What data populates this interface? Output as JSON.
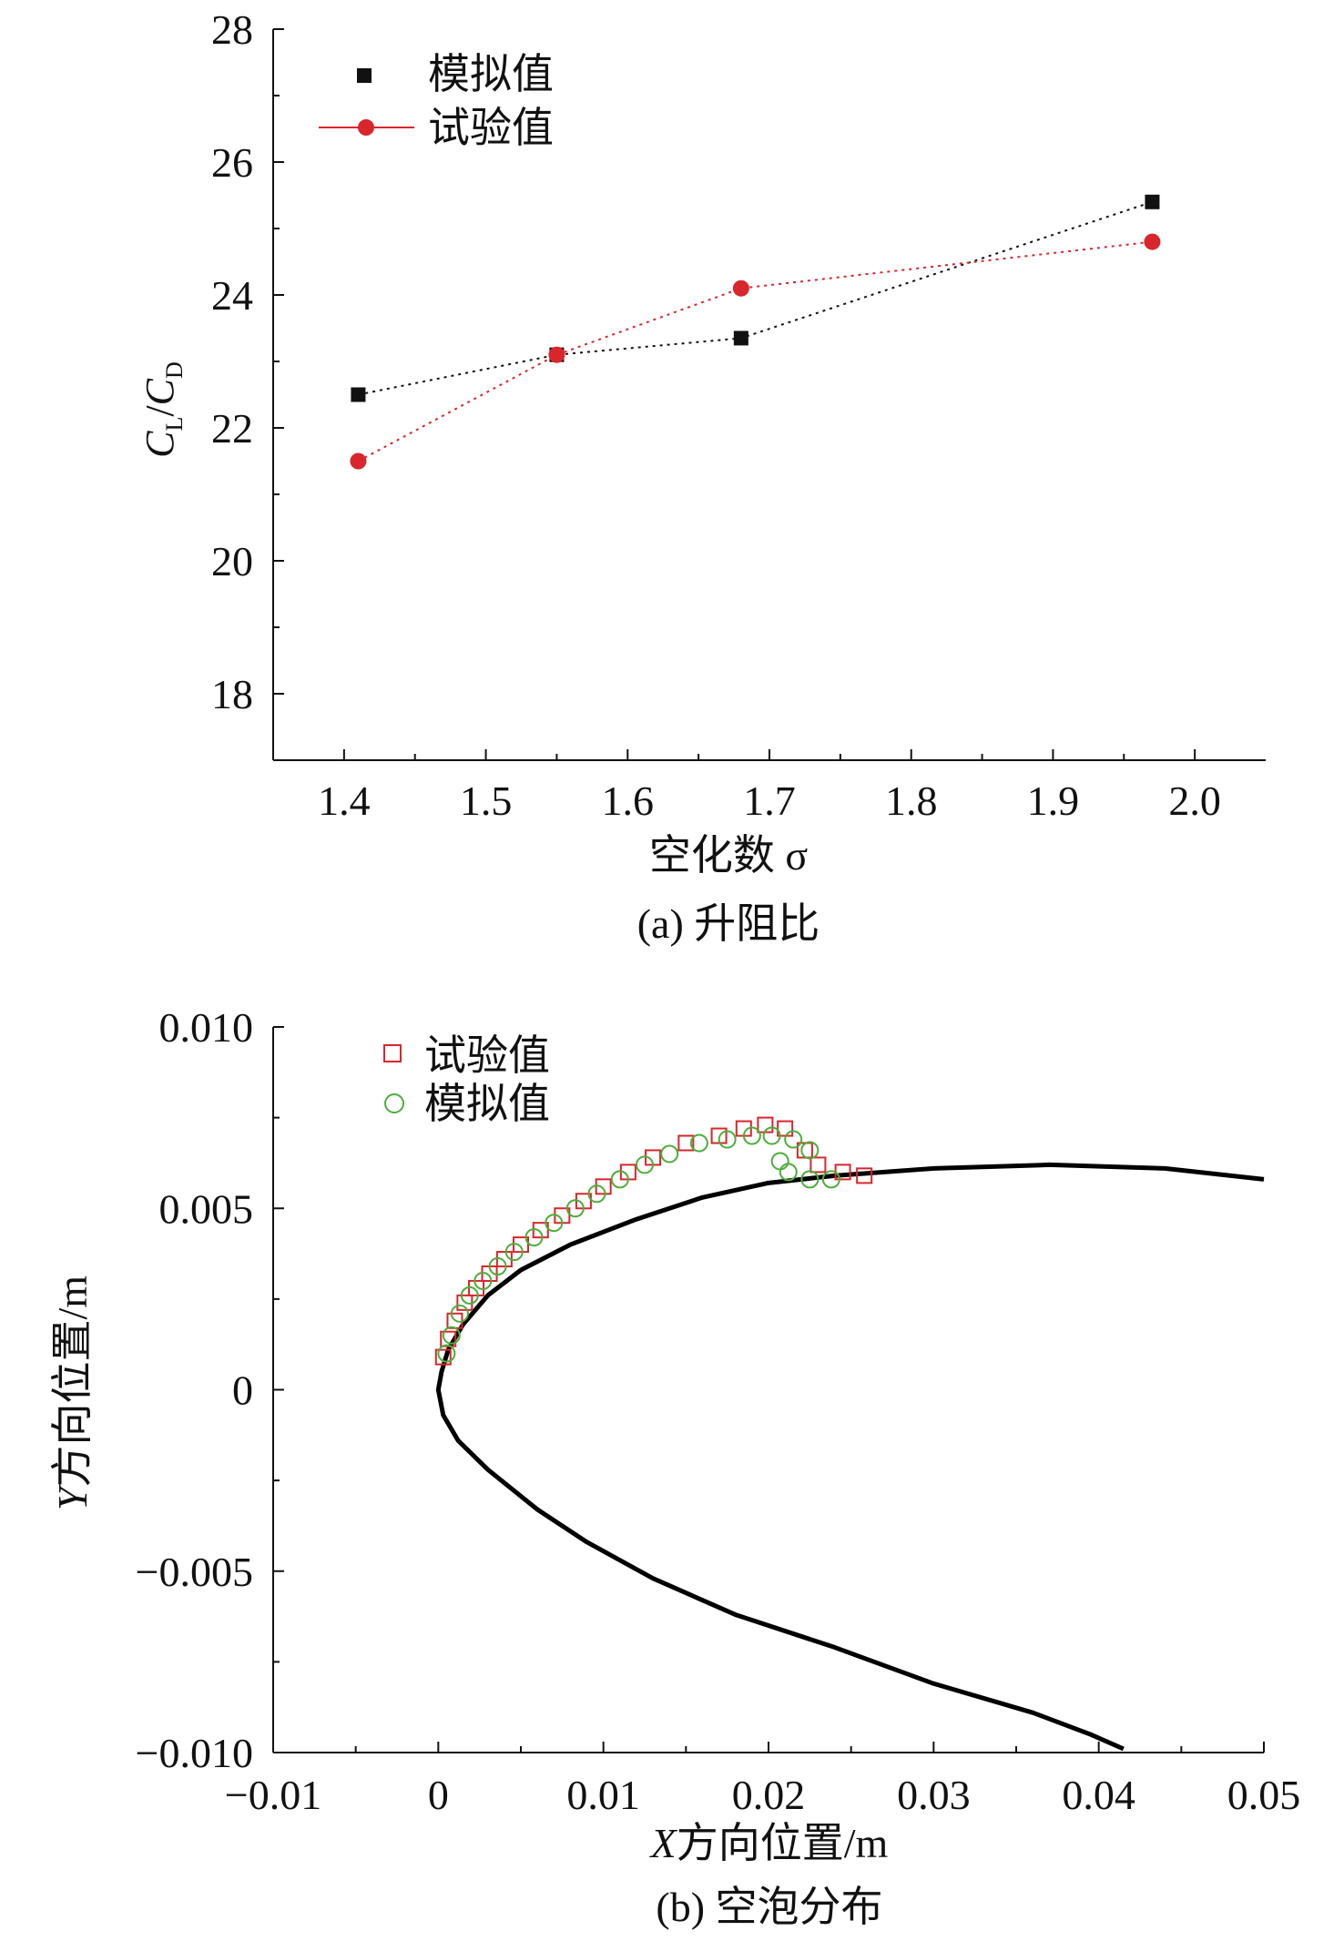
{
  "chart_data": [
    {
      "type": "line",
      "caption": "(a) 升阻比",
      "xlabel": "空化数 σ",
      "ylabel": {
        "main": "C",
        "sub1": "L",
        "slash": "/",
        "sub2": "D"
      },
      "xlim": [
        1.35,
        2.05
      ],
      "ylim": [
        17,
        28
      ],
      "xticks": [
        "1.4",
        "1.5",
        "1.6",
        "1.7",
        "1.8",
        "1.9",
        "2.0"
      ],
      "yticks": [
        "18",
        "20",
        "22",
        "24",
        "26",
        "28"
      ],
      "grid": false,
      "legend_position": "top-left",
      "series": [
        {
          "name": "模拟值",
          "marker": "square",
          "color": "#111111",
          "line_style": "dotted",
          "x": [
            1.41,
            1.55,
            1.68,
            1.97
          ],
          "y": [
            22.5,
            23.1,
            23.35,
            25.4
          ]
        },
        {
          "name": "试验值",
          "marker": "circle",
          "color": "#d8262c",
          "line_style": "dotted",
          "x": [
            1.41,
            1.55,
            1.68,
            1.97
          ],
          "y": [
            21.5,
            23.1,
            24.1,
            24.8
          ]
        }
      ]
    },
    {
      "type": "scatter",
      "caption": "(b) 空泡分布",
      "xlabel": {
        "italic": "X",
        "rest": "方向位置/m"
      },
      "ylabel": {
        "italic": "Y",
        "rest": "方向位置/m"
      },
      "xlim": [
        -0.01,
        0.05
      ],
      "ylim": [
        -0.01,
        0.01
      ],
      "xticks": [
        "−0.01",
        "0",
        "0.01",
        "0.02",
        "0.03",
        "0.04",
        "0.05"
      ],
      "yticks": [
        "−0.010",
        "−0.005",
        "0",
        "0.005",
        "0.010"
      ],
      "grid": false,
      "legend_position": "top-left",
      "series": [
        {
          "name": "试验值",
          "marker": "open-square",
          "color": "#d8262c",
          "points": [
            [
              0.0003,
              0.0009
            ],
            [
              0.0006,
              0.0014
            ],
            [
              0.001,
              0.0019
            ],
            [
              0.0016,
              0.0024
            ],
            [
              0.0023,
              0.0028
            ],
            [
              0.0031,
              0.0032
            ],
            [
              0.004,
              0.0036
            ],
            [
              0.005,
              0.004
            ],
            [
              0.0062,
              0.0044
            ],
            [
              0.0075,
              0.0048
            ],
            [
              0.0088,
              0.0052
            ],
            [
              0.01,
              0.0056
            ],
            [
              0.0115,
              0.006
            ],
            [
              0.013,
              0.0064
            ],
            [
              0.015,
              0.0068
            ],
            [
              0.017,
              0.007
            ],
            [
              0.0185,
              0.0072
            ],
            [
              0.0198,
              0.0073
            ],
            [
              0.021,
              0.0072
            ],
            [
              0.0222,
              0.0066
            ],
            [
              0.023,
              0.0062
            ],
            [
              0.0245,
              0.006
            ],
            [
              0.0258,
              0.0059
            ]
          ]
        },
        {
          "name": "模拟值",
          "marker": "open-circle",
          "color": "#4cae3a",
          "points": [
            [
              0.0005,
              0.001
            ],
            [
              0.0008,
              0.0015
            ],
            [
              0.0013,
              0.0021
            ],
            [
              0.0019,
              0.0026
            ],
            [
              0.0027,
              0.003
            ],
            [
              0.0036,
              0.0034
            ],
            [
              0.0046,
              0.0038
            ],
            [
              0.0058,
              0.0042
            ],
            [
              0.007,
              0.0046
            ],
            [
              0.0083,
              0.005
            ],
            [
              0.0096,
              0.0054
            ],
            [
              0.011,
              0.0058
            ],
            [
              0.0125,
              0.0062
            ],
            [
              0.014,
              0.0065
            ],
            [
              0.0158,
              0.0068
            ],
            [
              0.0175,
              0.0069
            ],
            [
              0.019,
              0.007
            ],
            [
              0.0202,
              0.007
            ],
            [
              0.0215,
              0.0069
            ],
            [
              0.0225,
              0.0066
            ],
            [
              0.0207,
              0.0063
            ],
            [
              0.0212,
              0.006
            ],
            [
              0.0225,
              0.0058
            ],
            [
              0.0238,
              0.0058
            ]
          ]
        },
        {
          "name": "",
          "marker": "line",
          "color": "#000000",
          "points": [
            [
              0.05,
              0.0058
            ],
            [
              0.044,
              0.0061
            ],
            [
              0.037,
              0.0062
            ],
            [
              0.03,
              0.0061
            ],
            [
              0.024,
              0.0059
            ],
            [
              0.02,
              0.0057
            ],
            [
              0.016,
              0.0053
            ],
            [
              0.012,
              0.0047
            ],
            [
              0.008,
              0.004
            ],
            [
              0.005,
              0.0033
            ],
            [
              0.003,
              0.0026
            ],
            [
              0.0015,
              0.0018
            ],
            [
              0.0006,
              0.0011
            ],
            [
              0.0002,
              0.0005
            ],
            [
              0.0,
              0.0
            ],
            [
              0.0003,
              -0.0007
            ],
            [
              0.0012,
              -0.0014
            ],
            [
              0.003,
              -0.0022
            ],
            [
              0.006,
              -0.0033
            ],
            [
              0.009,
              -0.0042
            ],
            [
              0.013,
              -0.0052
            ],
            [
              0.018,
              -0.0062
            ],
            [
              0.024,
              -0.0071
            ],
            [
              0.03,
              -0.0081
            ],
            [
              0.036,
              -0.0089
            ],
            [
              0.0395,
              -0.0095
            ],
            [
              0.0415,
              -0.0099
            ]
          ]
        }
      ]
    }
  ]
}
